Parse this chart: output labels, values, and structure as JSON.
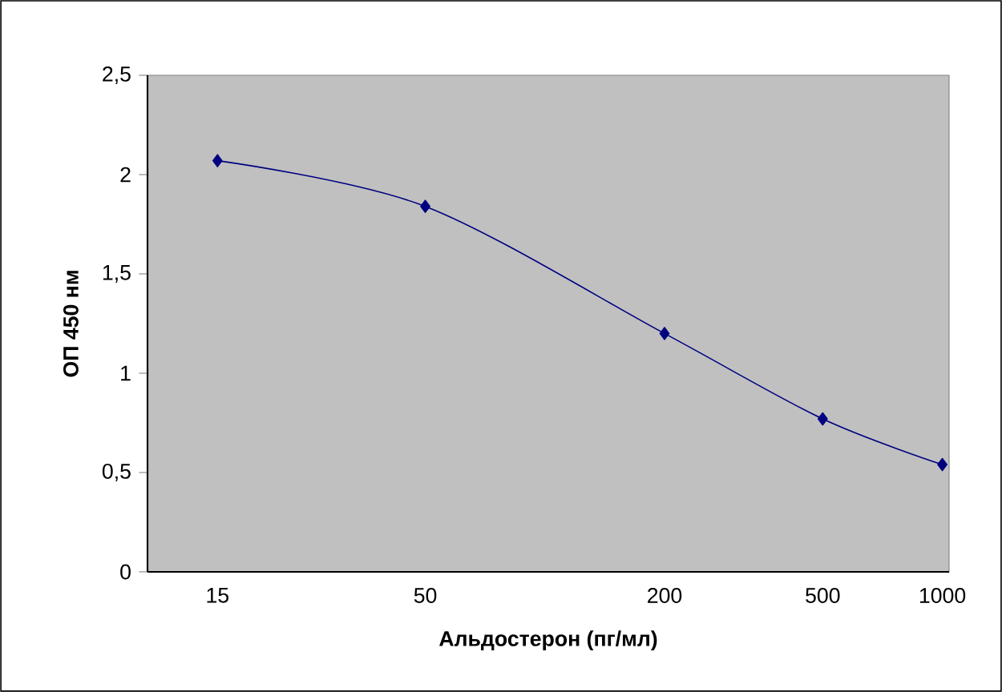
{
  "chart_data": {
    "type": "line",
    "xlabel": "Альдостерон (пг/мл)",
    "ylabel": "ОП 450 нм",
    "x": [
      15,
      50,
      200,
      500,
      1000
    ],
    "series": [
      {
        "color": "#000080",
        "values": [
          2.07,
          1.84,
          1.2,
          0.77,
          0.54
        ]
      }
    ],
    "log": "x",
    "xlim": [
      10,
      1040
    ],
    "xticks": [
      15,
      50,
      200,
      500,
      1000
    ],
    "ylim": [
      0,
      2.5
    ],
    "yticks": [
      0,
      {
        "value": 0.5,
        "label": "0,5"
      },
      1,
      {
        "value": 1.5,
        "label": "1,5"
      },
      2,
      {
        "value": 2.5,
        "label": "2,5"
      }
    ],
    "marker": "diamond",
    "line_style": "solid"
  }
}
